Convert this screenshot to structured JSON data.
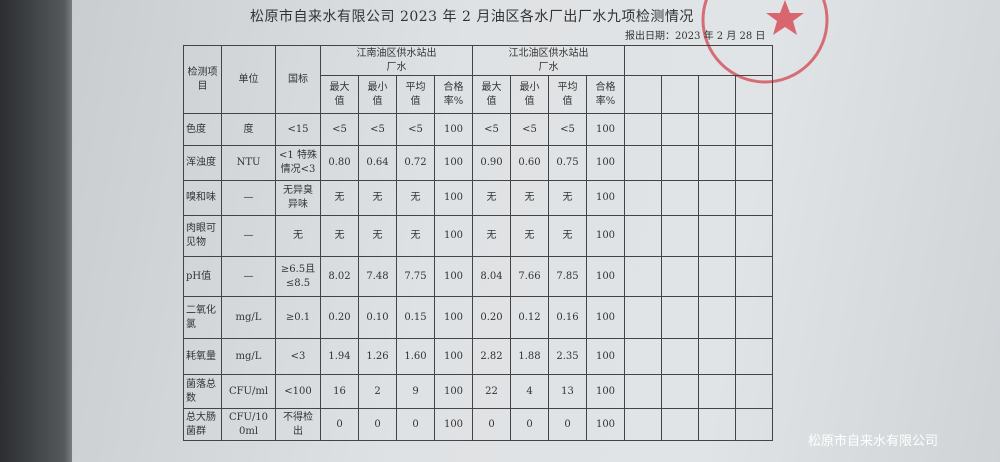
{
  "title": "松原市自来水有限公司 2023 年 2 月油区各水厂出厂水九项检测情况",
  "report_date": "报出日期：2023 年 2 月 28 日",
  "stamp_text": "松原市自来水有限公司",
  "watermark": "松原市自来水有限公司",
  "colors": {
    "stamp": "#d24650"
  },
  "headers": {
    "item": "检测项目",
    "unit": "单位",
    "standard": "国标",
    "group1": "江南油区供水站出厂水",
    "group2": "江北油区供水站出厂水",
    "sub": [
      "最大值",
      "最小值",
      "平均值",
      "合格率%"
    ]
  },
  "rows": [
    {
      "item": "色度",
      "unit": "度",
      "std": "<15",
      "v": [
        "<5",
        "<5",
        "<5",
        "100",
        "<5",
        "<5",
        "<5",
        "100"
      ]
    },
    {
      "item": "浑浊度",
      "unit": "NTU",
      "std": "<1 特殊情况<3",
      "v": [
        "0.80",
        "0.64",
        "0.72",
        "100",
        "0.90",
        "0.60",
        "0.75",
        "100"
      ]
    },
    {
      "item": "嗅和味",
      "unit": "—",
      "std": "无异臭异味",
      "v": [
        "无",
        "无",
        "无",
        "100",
        "无",
        "无",
        "无",
        "100"
      ]
    },
    {
      "item": "肉眼可见物",
      "unit": "—",
      "std": "无",
      "v": [
        "无",
        "无",
        "无",
        "100",
        "无",
        "无",
        "无",
        "100"
      ]
    },
    {
      "item": "pH值",
      "unit": "—",
      "std": "≥6.5且≤8.5",
      "v": [
        "8.02",
        "7.48",
        "7.75",
        "100",
        "8.04",
        "7.66",
        "7.85",
        "100"
      ]
    },
    {
      "item": "二氧化氯",
      "unit": "mg/L",
      "std": "≥0.1",
      "v": [
        "0.20",
        "0.10",
        "0.15",
        "100",
        "0.20",
        "0.12",
        "0.16",
        "100"
      ]
    },
    {
      "item": "耗氧量",
      "unit": "mg/L",
      "std": "<3",
      "v": [
        "1.94",
        "1.26",
        "1.60",
        "100",
        "2.82",
        "1.88",
        "2.35",
        "100"
      ]
    },
    {
      "item": "菌落总数",
      "unit": "CFU/ml",
      "std": "<100",
      "v": [
        "16",
        "2",
        "9",
        "100",
        "22",
        "4",
        "13",
        "100"
      ]
    },
    {
      "item": "总大肠菌群",
      "unit": "CFU/100ml",
      "std": "不得检出",
      "v": [
        "0",
        "0",
        "0",
        "100",
        "0",
        "0",
        "0",
        "100"
      ]
    }
  ]
}
